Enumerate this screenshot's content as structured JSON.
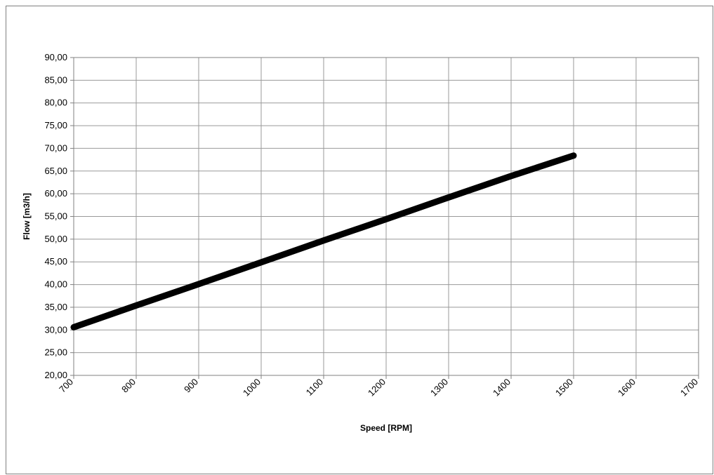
{
  "chart_data": {
    "type": "line",
    "xlabel": "Speed [RPM]",
    "ylabel": "Flow [m3/h]",
    "xlim": [
      700,
      1700
    ],
    "ylim": [
      20,
      90
    ],
    "x_ticks": [
      "700",
      "800",
      "900",
      "1000",
      "1100",
      "1200",
      "1300",
      "1400",
      "1500",
      "1600",
      "1700"
    ],
    "y_ticks": [
      "20,00",
      "25,00",
      "30,00",
      "35,00",
      "40,00",
      "45,00",
      "50,00",
      "55,00",
      "60,00",
      "65,00",
      "70,00",
      "75,00",
      "80,00",
      "85,00",
      "90,00"
    ],
    "grid": true,
    "legend": "none",
    "series": [
      {
        "x": [
          700,
          800,
          900,
          1000,
          1100,
          1200,
          1300,
          1400,
          1500
        ],
        "y": [
          30.6,
          35.4,
          40.1,
          44.9,
          49.7,
          54.4,
          59.2,
          63.9,
          68.4
        ],
        "color": "#000000"
      }
    ]
  }
}
